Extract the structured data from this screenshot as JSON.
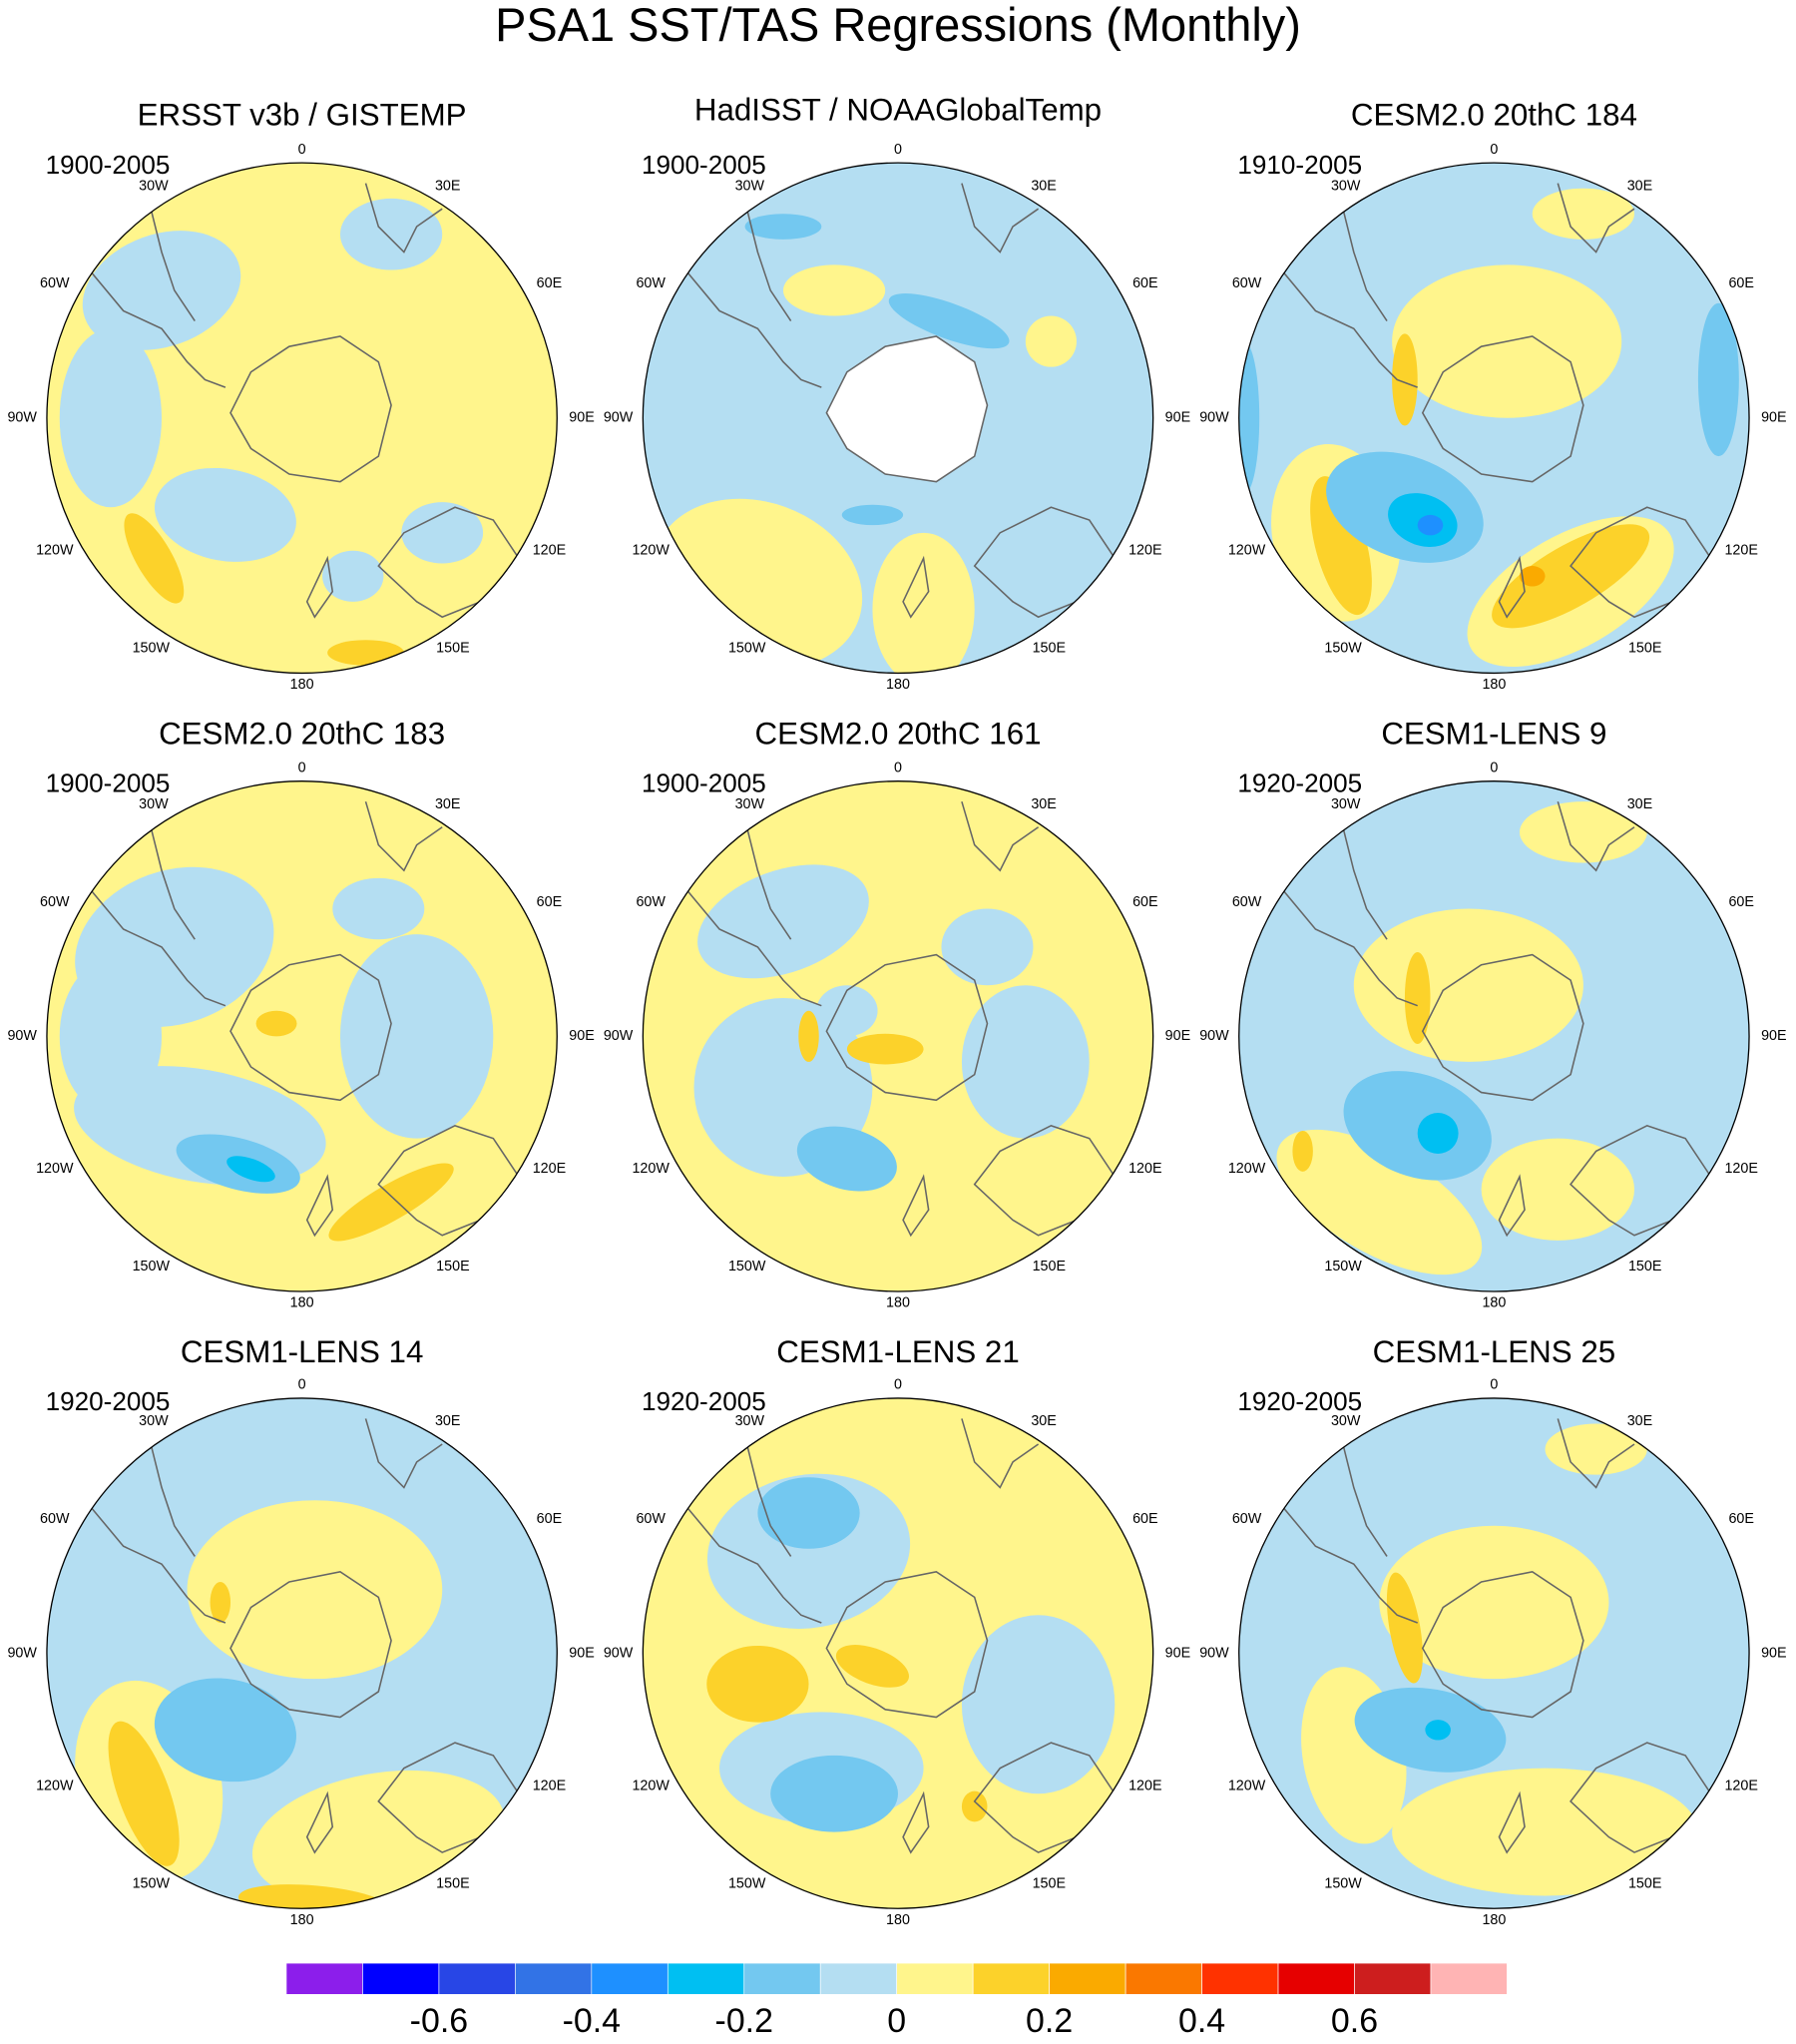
{
  "title": "PSA1 SST/TAS Regressions (Monthly)",
  "panels": [
    {
      "title": "ERSST v3b / GISTEMP",
      "period": "1900-2005"
    },
    {
      "title": "HadISST / NOAAGlobalTemp",
      "period": "1900-2005"
    },
    {
      "title": "CESM2.0 20thC 184",
      "period": "1910-2005"
    },
    {
      "title": "CESM2.0 20thC 183",
      "period": "1900-2005"
    },
    {
      "title": "CESM2.0 20thC 161",
      "period": "1900-2005"
    },
    {
      "title": "CESM1-LENS 9",
      "period": "1920-2005"
    },
    {
      "title": "CESM1-LENS 14",
      "period": "1920-2005"
    },
    {
      "title": "CESM1-LENS 21",
      "period": "1920-2005"
    },
    {
      "title": "CESM1-LENS 25",
      "period": "1920-2005"
    }
  ],
  "longitude_labels": [
    "0",
    "30E",
    "60E",
    "90E",
    "120E",
    "150E",
    "180",
    "150W",
    "120W",
    "90W",
    "60W",
    "30W"
  ],
  "colorbar": {
    "colors": [
      "#8c1eeb",
      "#0000ff",
      "#2846e6",
      "#3273e6",
      "#1e90ff",
      "#00bff2",
      "#73c8f0",
      "#b4def2",
      "#fff58c",
      "#fcd22a",
      "#faaa00",
      "#fa7800",
      "#ff3200",
      "#e60000",
      "#cd1e1e",
      "#ffb4b4"
    ],
    "range": [
      -0.8,
      0.8
    ],
    "ticks": [
      -0.6,
      -0.4,
      -0.2,
      0,
      0.2,
      0.4,
      0.6
    ]
  }
}
